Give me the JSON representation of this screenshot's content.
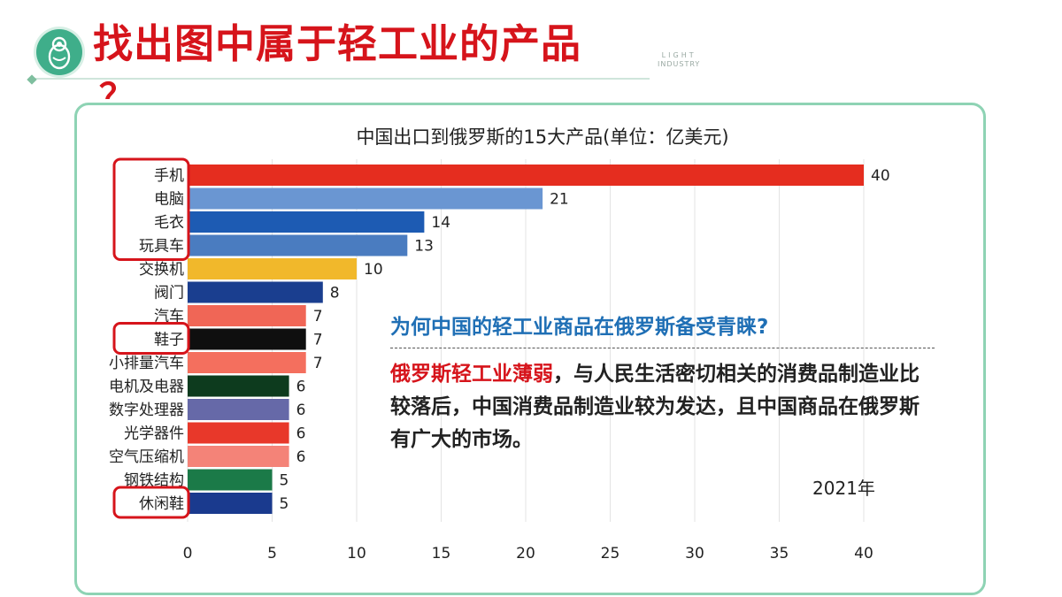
{
  "slide": {
    "title": "找出图中属于轻工业的产品",
    "title_overflow": "？",
    "brand_line1": "LIGHT",
    "brand_line2": "INDUSTRY"
  },
  "colors": {
    "title_red": "#d6141b",
    "frame_green": "#8ed3b4",
    "question_blue": "#1f6fb5",
    "highlight_box_red": "#d6141b"
  },
  "chart_data": {
    "type": "bar",
    "orientation": "horizontal",
    "title": "中国出口到俄罗斯的15大产品(单位：亿美元)",
    "categories": [
      "手机",
      "电脑",
      "毛衣",
      "玩具车",
      "交换机",
      "阀门",
      "汽车",
      "鞋子",
      "小排量汽车",
      "电机及电器",
      "数字处理器",
      "光学器件",
      "空气压缩机",
      "钢铁结构",
      "休闲鞋"
    ],
    "values": [
      40,
      21,
      14,
      13,
      10,
      8,
      7,
      7,
      7,
      6,
      6,
      6,
      6,
      5,
      5
    ],
    "colors": [
      "#e52d1f",
      "#6a96d2",
      "#1d5bb3",
      "#4a7cc0",
      "#f1b82b",
      "#1a3e8f",
      "#f06656",
      "#0f0f0f",
      "#f46f5e",
      "#0d3b1e",
      "#6669a8",
      "#e8382a",
      "#f48378",
      "#1b7a48",
      "#1a3a8e"
    ],
    "xlim": [
      0,
      40
    ],
    "xticks": [
      0,
      5,
      10,
      15,
      20,
      25,
      30,
      35,
      40
    ],
    "grid": true,
    "highlighted_groups": [
      [
        "手机",
        "电脑",
        "毛衣",
        "玩具车"
      ],
      [
        "鞋子"
      ],
      [
        "休闲鞋"
      ]
    ],
    "year_label": "2021年"
  },
  "text": {
    "question": "为何中国的轻工业商品在俄罗斯备受青睐?",
    "answer_highlight": "俄罗斯轻工业薄弱",
    "answer_rest": "，与人民生活密切相关的消费品制造业比较落后，中国消费品制造业较为发达，且中国商品在俄罗斯有广大的市场。"
  }
}
